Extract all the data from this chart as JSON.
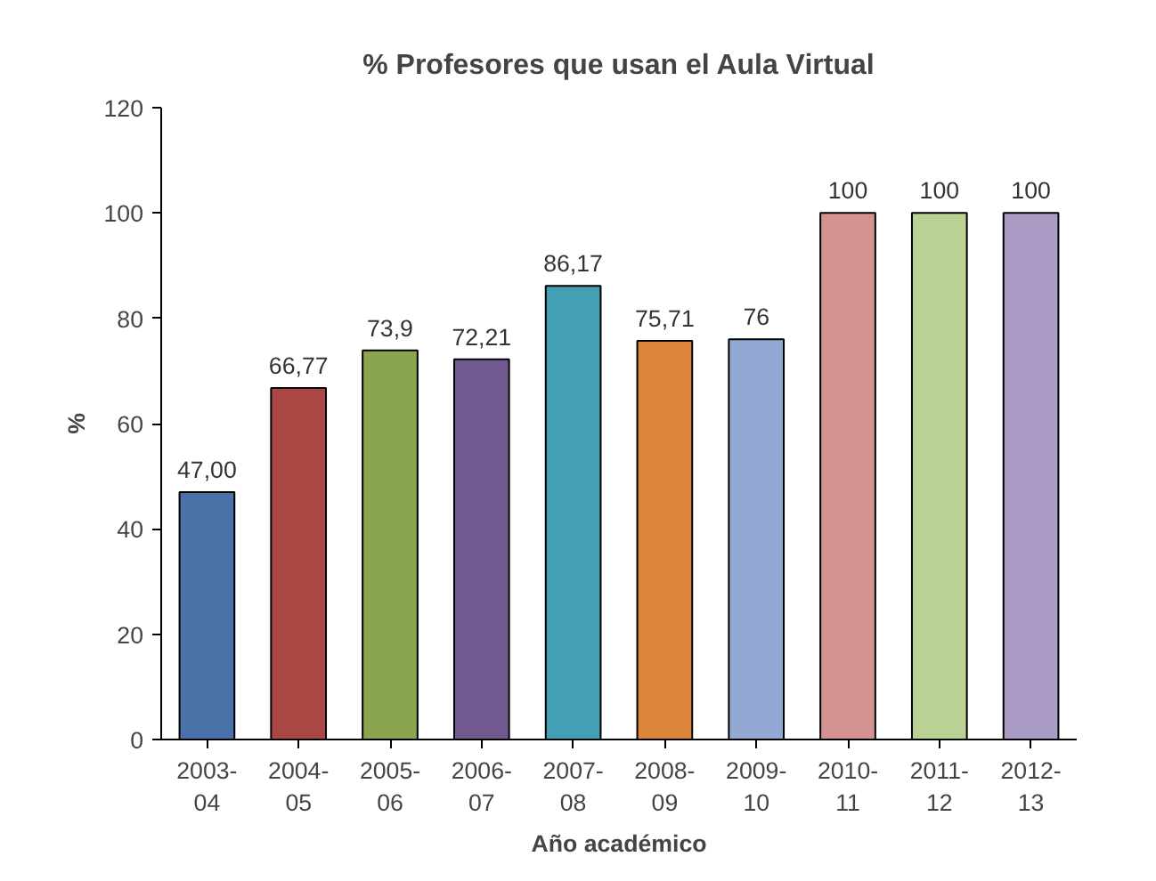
{
  "chart_data": {
    "type": "bar",
    "title": "% Profesores que usan el Aula Virtual",
    "xlabel": "Año académico",
    "ylabel": "%",
    "categories": [
      "2003-04",
      "2004-05",
      "2005-06",
      "2006-07",
      "2007-08",
      "2008-09",
      "2009-10",
      "2010-11",
      "2011-12",
      "2012-13"
    ],
    "values": [
      47,
      66.77,
      73.9,
      72.21,
      86.17,
      75.71,
      76,
      100,
      100,
      100
    ],
    "value_labels": [
      "47,00",
      "66,77",
      "73,9",
      "72,21",
      "86,17",
      "75,71",
      "76",
      "100",
      "100",
      "100"
    ],
    "colors": [
      "#4a72a8",
      "#aa4644",
      "#8ba54e",
      "#725a90",
      "#43a0b4",
      "#db853a",
      "#93a9d4",
      "#d59292",
      "#b9d194",
      "#a99bc3"
    ],
    "ylim": [
      0,
      120
    ],
    "yticks": [
      0,
      20,
      40,
      60,
      80,
      100,
      120
    ],
    "grid": false
  }
}
